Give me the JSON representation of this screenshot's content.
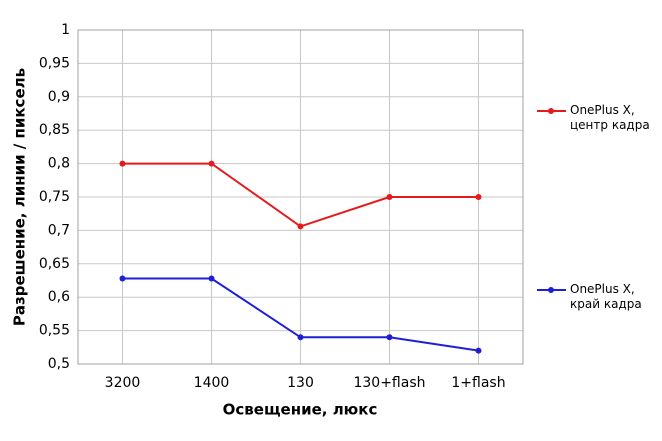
{
  "chart_data": {
    "type": "line",
    "x_label": "Освещение, люкс",
    "y_label": "Разрешение, линии / пиксель",
    "categories": [
      "3200",
      "1400",
      "130",
      "130+flash",
      "1+flash"
    ],
    "series": [
      {
        "name": "OnePlus X, центр кадра",
        "color": "#e41a1c",
        "values": [
          0.8,
          0.8,
          0.706,
          0.75,
          0.75
        ]
      },
      {
        "name": "OnePlus X, край кадра",
        "color": "#1f1fd6",
        "values": [
          0.628,
          0.628,
          0.54,
          0.54,
          0.52
        ]
      }
    ],
    "ylim": [
      0.5,
      1
    ],
    "yticks": [
      {
        "value": 0.5,
        "label": "0,5"
      },
      {
        "value": 0.55,
        "label": "0,55"
      },
      {
        "value": 0.6,
        "label": "0,6"
      },
      {
        "value": 0.65,
        "label": "0,65"
      },
      {
        "value": 0.7,
        "label": "0,7"
      },
      {
        "value": 0.75,
        "label": "0,75"
      },
      {
        "value": 0.8,
        "label": "0,8"
      },
      {
        "value": 0.85,
        "label": "0,85"
      },
      {
        "value": 0.9,
        "label": "0,9"
      },
      {
        "value": 0.95,
        "label": "0,95"
      },
      1
    ],
    "grid": true
  }
}
